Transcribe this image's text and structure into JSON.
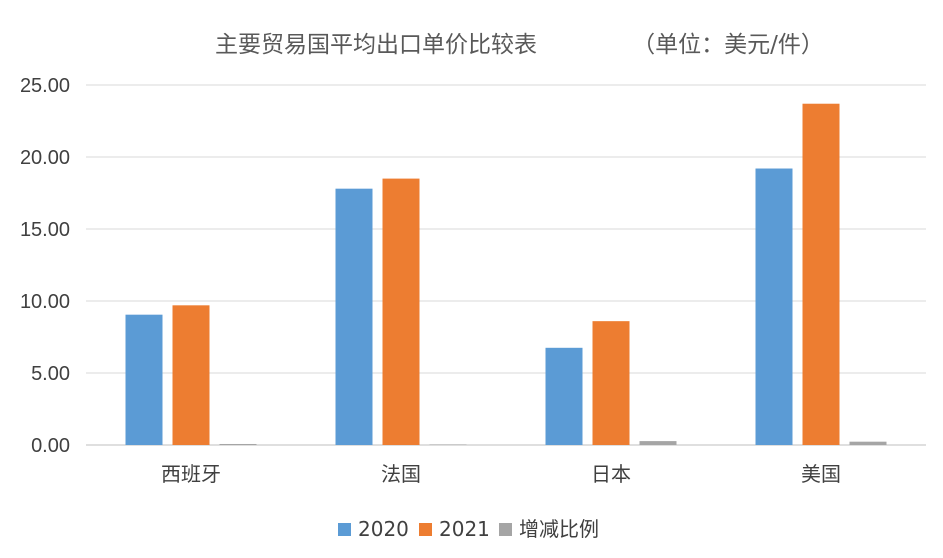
{
  "chart_data": {
    "type": "bar",
    "title": "主要贸易国平均出口单价比较表",
    "unit_note": "（单位：美元/件）",
    "categories": [
      "西班牙",
      "法国",
      "日本",
      "美国"
    ],
    "series": [
      {
        "name": "2020",
        "color": "#5B9BD5",
        "values": [
          9.05,
          17.8,
          6.75,
          19.2
        ]
      },
      {
        "name": "2021",
        "color": "#ED7D31",
        "values": [
          9.7,
          18.5,
          8.6,
          23.7
        ]
      },
      {
        "name": "增减比例",
        "color": "#A5A5A5",
        "values": [
          0.07,
          0.04,
          0.27,
          0.23
        ]
      }
    ],
    "ylim": [
      0,
      25
    ],
    "yticks": [
      "0.00",
      "5.00",
      "10.00",
      "15.00",
      "20.00",
      "25.00"
    ],
    "xlabel": "",
    "ylabel": "",
    "grid": true,
    "legend_position": "bottom"
  }
}
